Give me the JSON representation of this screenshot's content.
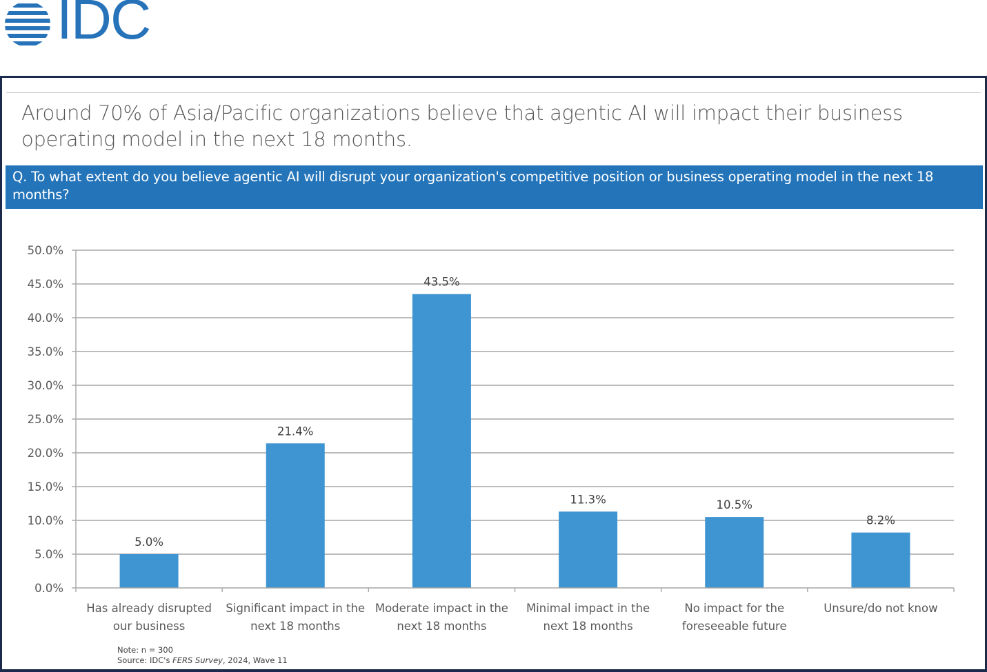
{
  "header": {
    "logo_text": "IDC",
    "brand_color": "#2673ba"
  },
  "headline": "Around 70% of Asia/Pacific organizations believe that agentic AI will impact their business operating model in the next 18 months.",
  "question": "Q. To what extent do you believe agentic AI will disrupt your organization's competitive position or business operating model in the next 18 months?",
  "footer": {
    "note": "Note: n = 300",
    "source_prefix": "Source: IDC's ",
    "source_italic": "FERS Survey",
    "source_suffix": ", 2024, Wave 11"
  },
  "chart_data": {
    "type": "bar",
    "title": "",
    "xlabel": "",
    "ylabel": "",
    "categories": [
      [
        "Has already disrupted",
        "our business"
      ],
      [
        "Significant impact in the",
        "next 18 months"
      ],
      [
        "Moderate impact in the",
        "next 18 months"
      ],
      [
        "Minimal impact in the",
        "next 18 months"
      ],
      [
        "No impact for the",
        "foreseeable future"
      ],
      [
        "Unsure/do not know"
      ]
    ],
    "values": [
      5.0,
      21.4,
      43.5,
      11.3,
      10.5,
      8.2
    ],
    "data_labels": [
      "5.0%",
      "21.4%",
      "43.5%",
      "11.3%",
      "10.5%",
      "8.2%"
    ],
    "ylim": [
      0,
      50
    ],
    "y_ticks": [
      0,
      5,
      10,
      15,
      20,
      25,
      30,
      35,
      40,
      45,
      50
    ],
    "y_tick_labels": [
      "0.0%",
      "5.0%",
      "10.0%",
      "15.0%",
      "20.0%",
      "25.0%",
      "30.0%",
      "35.0%",
      "40.0%",
      "45.0%",
      "50.0%"
    ],
    "grid": true,
    "legend": "none",
    "bar_color": "#3f95d2"
  }
}
